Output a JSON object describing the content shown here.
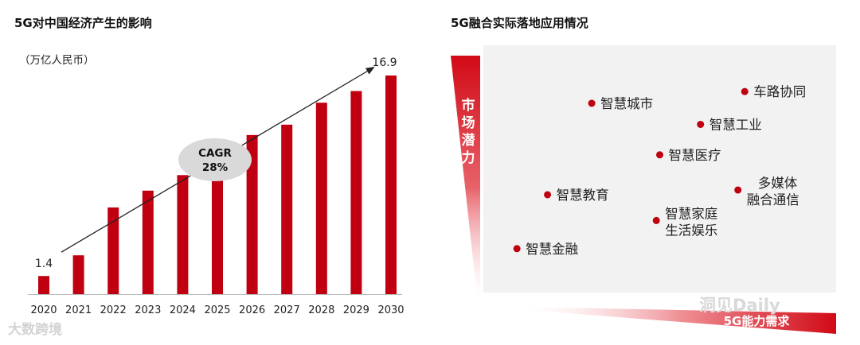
{
  "left": {
    "title": "5G对中国经济产生的影响",
    "unit_label": "（万亿人民币）",
    "cagr_label_1": "CAGR",
    "cagr_label_2": "28%",
    "first_value_label": "1.4",
    "last_value_label": "16.9"
  },
  "right": {
    "title": "5G融合实际落地应用情况",
    "y_axis_label": [
      "市",
      "场",
      "潜",
      "力"
    ],
    "x_axis_label": "5G能力需求"
  },
  "watermarks": {
    "left": "大数跨境",
    "right": "洞见Daily"
  },
  "colors": {
    "bar": "#c00010",
    "dot": "#c00010",
    "plot_bg": "#f2f2f2",
    "ellipse": "#d9d9d9"
  },
  "chart_data": [
    {
      "type": "bar",
      "title": "5G对中国经济产生的影响",
      "ylabel": "（万亿人民币）",
      "categories": [
        "2020",
        "2021",
        "2022",
        "2023",
        "2024",
        "2025",
        "2026",
        "2027",
        "2028",
        "2029",
        "2030"
      ],
      "values": [
        1.4,
        3.0,
        6.7,
        8.0,
        9.2,
        11.0,
        12.3,
        13.1,
        14.8,
        15.7,
        16.9
      ],
      "ylim": [
        0,
        17.5
      ],
      "annotations": [
        "CAGR 28%",
        "1.4",
        "16.9"
      ],
      "grid": false,
      "colors": [
        "#c00010"
      ]
    },
    {
      "type": "scatter",
      "title": "5G融合实际落地应用情况",
      "xlabel": "5G能力需求",
      "ylabel": "市场潜力",
      "xlim": [
        0,
        10
      ],
      "ylim": [
        0,
        10
      ],
      "grid": false,
      "points": [
        {
          "label": "智慧城市",
          "x": 3.0,
          "y": 7.8
        },
        {
          "label": "车路协同",
          "x": 7.5,
          "y": 8.3
        },
        {
          "label": "智慧工业",
          "x": 6.2,
          "y": 6.9
        },
        {
          "label": "智慧医疗",
          "x": 5.0,
          "y": 5.6
        },
        {
          "label": "智慧教育",
          "x": 1.7,
          "y": 3.9
        },
        {
          "label": "多媒体\n融合通信",
          "x": 7.3,
          "y": 4.1
        },
        {
          "label": "智慧家庭\n生活娱乐",
          "x": 4.9,
          "y": 2.8
        },
        {
          "label": "智慧金融",
          "x": 0.8,
          "y": 1.6
        }
      ]
    }
  ]
}
